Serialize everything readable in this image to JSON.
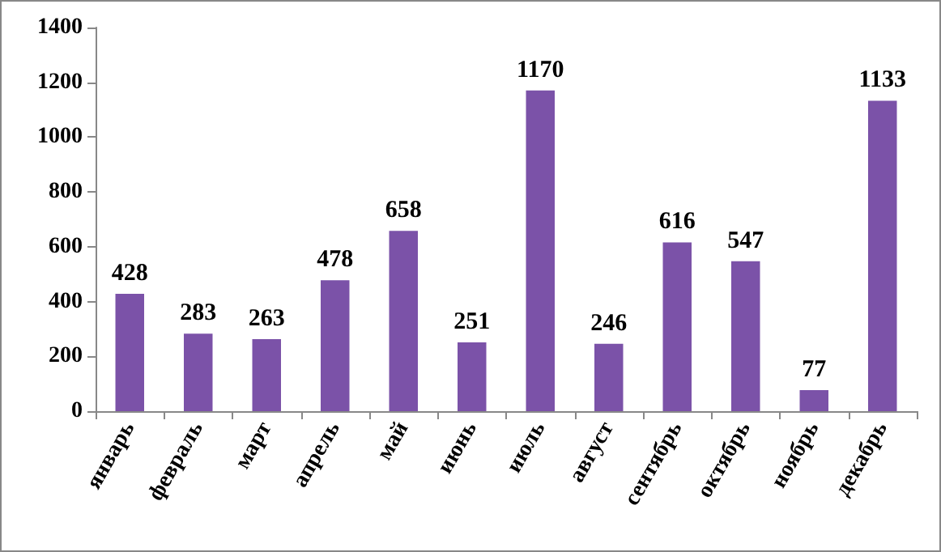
{
  "chart_data": {
    "type": "bar",
    "categories": [
      "январь",
      "февраль",
      "март",
      "апрель",
      "май",
      "июнь",
      "июль",
      "август",
      "сентябрь",
      "октябрь",
      "ноябрь",
      "декабрь"
    ],
    "values": [
      428,
      283,
      263,
      478,
      658,
      251,
      1170,
      246,
      616,
      547,
      77,
      1133
    ],
    "color": "#7b52a8",
    "ylim": [
      0,
      1400
    ],
    "yticks": [
      0,
      200,
      400,
      600,
      800,
      1000,
      1200,
      1400
    ],
    "grid": false,
    "data_labels": true
  }
}
